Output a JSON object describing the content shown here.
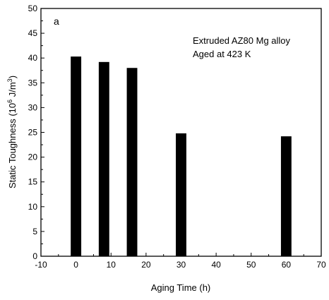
{
  "chart_data": {
    "type": "bar",
    "panel_label": "a",
    "xlabel": "Aging Time (h)",
    "ylabel_main": "Static Toughness (10",
    "ylabel_exp1": "6",
    "ylabel_mid": " J/m",
    "ylabel_exp2": "3",
    "ylabel_end": ")",
    "annotations": [
      "Extruded AZ80 Mg alloy",
      "Aged at 423 K"
    ],
    "xlim": [
      -10,
      70
    ],
    "ylim": [
      0,
      50
    ],
    "xticks": [
      "-10",
      "0",
      "10",
      "20",
      "30",
      "40",
      "50",
      "60",
      "70"
    ],
    "yticks": [
      "0",
      "5",
      "10",
      "15",
      "20",
      "25",
      "30",
      "35",
      "40",
      "45",
      "50"
    ],
    "x": [
      0,
      8,
      16,
      30,
      60
    ],
    "values": [
      40.3,
      39.2,
      38.0,
      24.8,
      24.2
    ],
    "bar_width": 3,
    "grid": false,
    "bar_color": "#000000"
  }
}
